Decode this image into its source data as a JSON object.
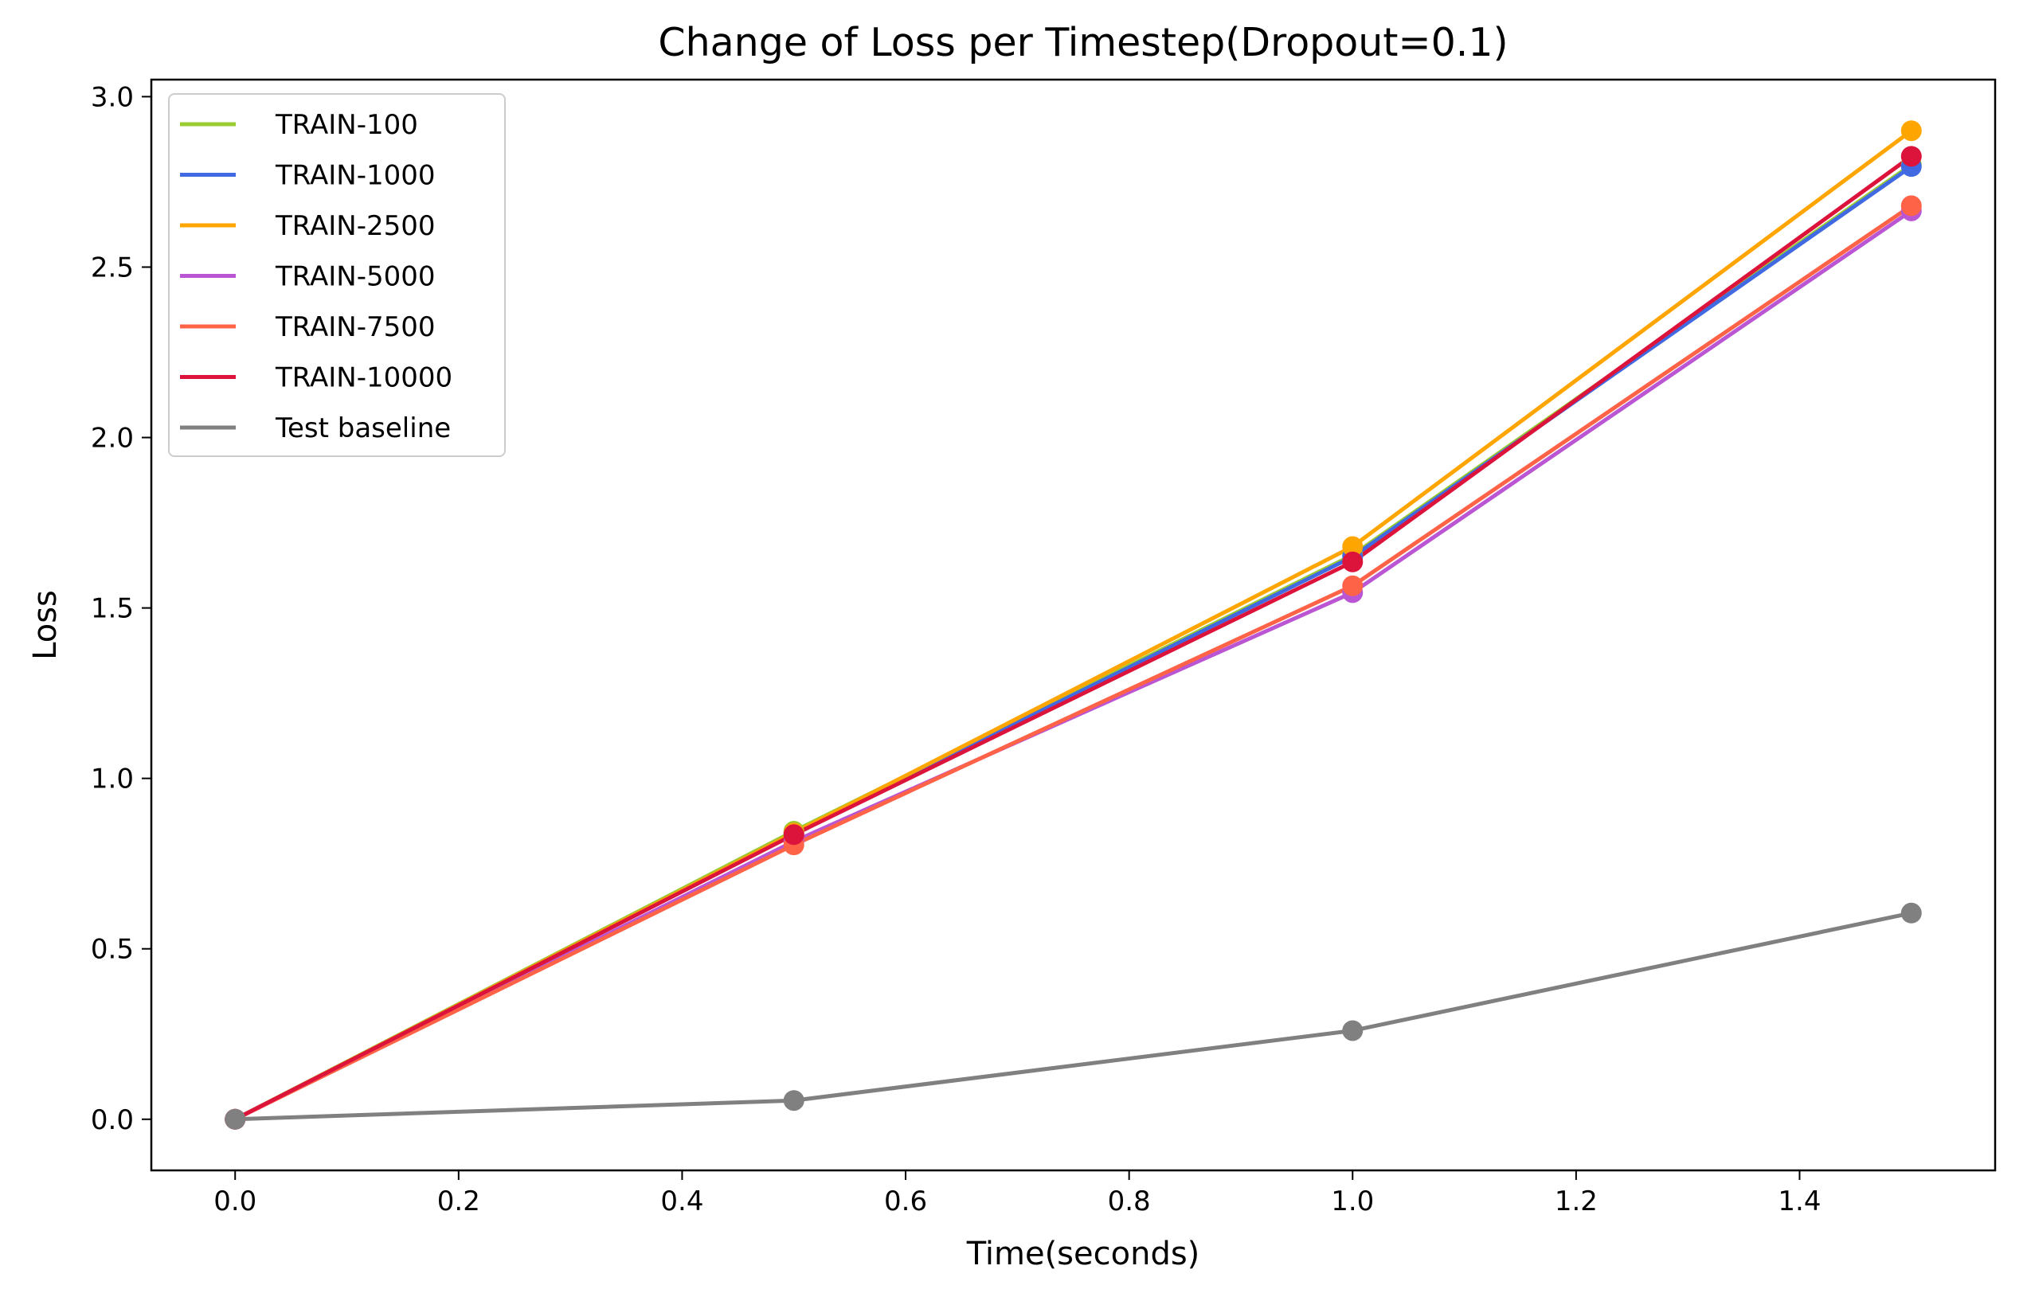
{
  "chart_data": {
    "type": "line",
    "title": "Change of Loss per Timestep(Dropout=0.1)",
    "xlabel": "Time(seconds)",
    "ylabel": "Loss",
    "xlim": [
      -0.075,
      1.575
    ],
    "ylim": [
      -0.15,
      3.05
    ],
    "xticks": [
      0.0,
      0.2,
      0.4,
      0.6,
      0.8,
      1.0,
      1.2,
      1.4
    ],
    "xtick_labels": [
      "0.0",
      "0.2",
      "0.4",
      "0.6",
      "0.8",
      "1.0",
      "1.2",
      "1.4"
    ],
    "yticks": [
      0.0,
      0.5,
      1.0,
      1.5,
      2.0,
      2.5,
      3.0
    ],
    "ytick_labels": [
      "0.0",
      "0.5",
      "1.0",
      "1.5",
      "2.0",
      "2.5",
      "3.0"
    ],
    "grid": false,
    "legend_position": "top-left",
    "x": [
      0.0,
      0.5,
      1.0,
      1.5
    ],
    "series": [
      {
        "name": "TRAIN-100",
        "color": "#9acd32",
        "values": [
          0.0,
          0.845,
          1.655,
          2.8
        ]
      },
      {
        "name": "TRAIN-1000",
        "color": "#4169e1",
        "values": [
          0.0,
          0.84,
          1.65,
          2.795
        ]
      },
      {
        "name": "TRAIN-2500",
        "color": "#ffa500",
        "values": [
          0.0,
          0.84,
          1.68,
          2.9
        ]
      },
      {
        "name": "TRAIN-5000",
        "color": "#ba55d3",
        "values": [
          0.0,
          0.815,
          1.545,
          2.665
        ]
      },
      {
        "name": "TRAIN-7500",
        "color": "#ff6347",
        "values": [
          0.0,
          0.805,
          1.565,
          2.68
        ]
      },
      {
        "name": "TRAIN-10000",
        "color": "#dc143c",
        "values": [
          0.0,
          0.835,
          1.635,
          2.825
        ]
      },
      {
        "name": "Test baseline",
        "color": "#808080",
        "values": [
          0.0,
          0.055,
          0.26,
          0.605
        ]
      }
    ]
  }
}
